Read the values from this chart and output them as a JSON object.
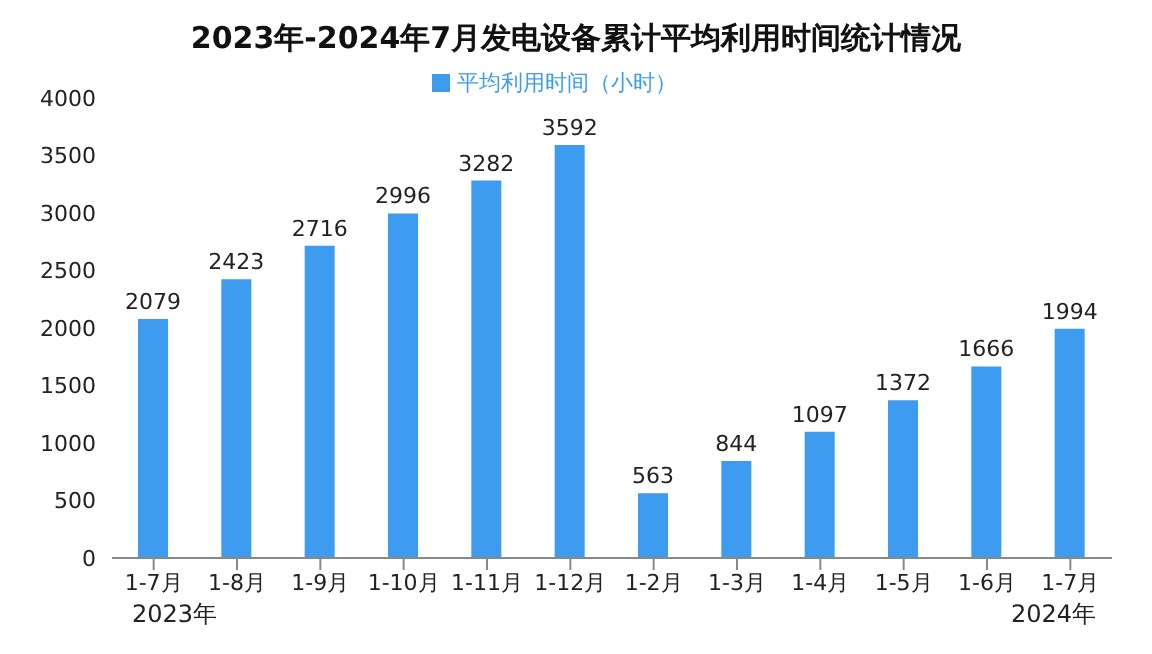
{
  "chart_data": {
    "type": "bar",
    "title": "2023年-2024年7月发电设备累计平均利用时间统计情况",
    "categories": [
      "1-7月",
      "1-8月",
      "1-9月",
      "1-10月",
      "1-11月",
      "1-12月",
      "1-2月",
      "1-3月",
      "1-4月",
      "1-5月",
      "1-6月",
      "1-7月"
    ],
    "series": [
      {
        "name": "平均利用时间（小时）",
        "color": "#3d9cf0",
        "values": [
          2079,
          2423,
          2716,
          2996,
          3282,
          3592,
          563,
          844,
          1097,
          1372,
          1666,
          1994
        ]
      }
    ],
    "ylim": [
      0,
      4000
    ],
    "yticks": [
      0,
      500,
      1000,
      1500,
      2000,
      2500,
      3000,
      3500,
      4000
    ],
    "data_labels": true,
    "legend": "top",
    "grid": false,
    "annotations": [
      "2023年",
      "2024年"
    ]
  }
}
